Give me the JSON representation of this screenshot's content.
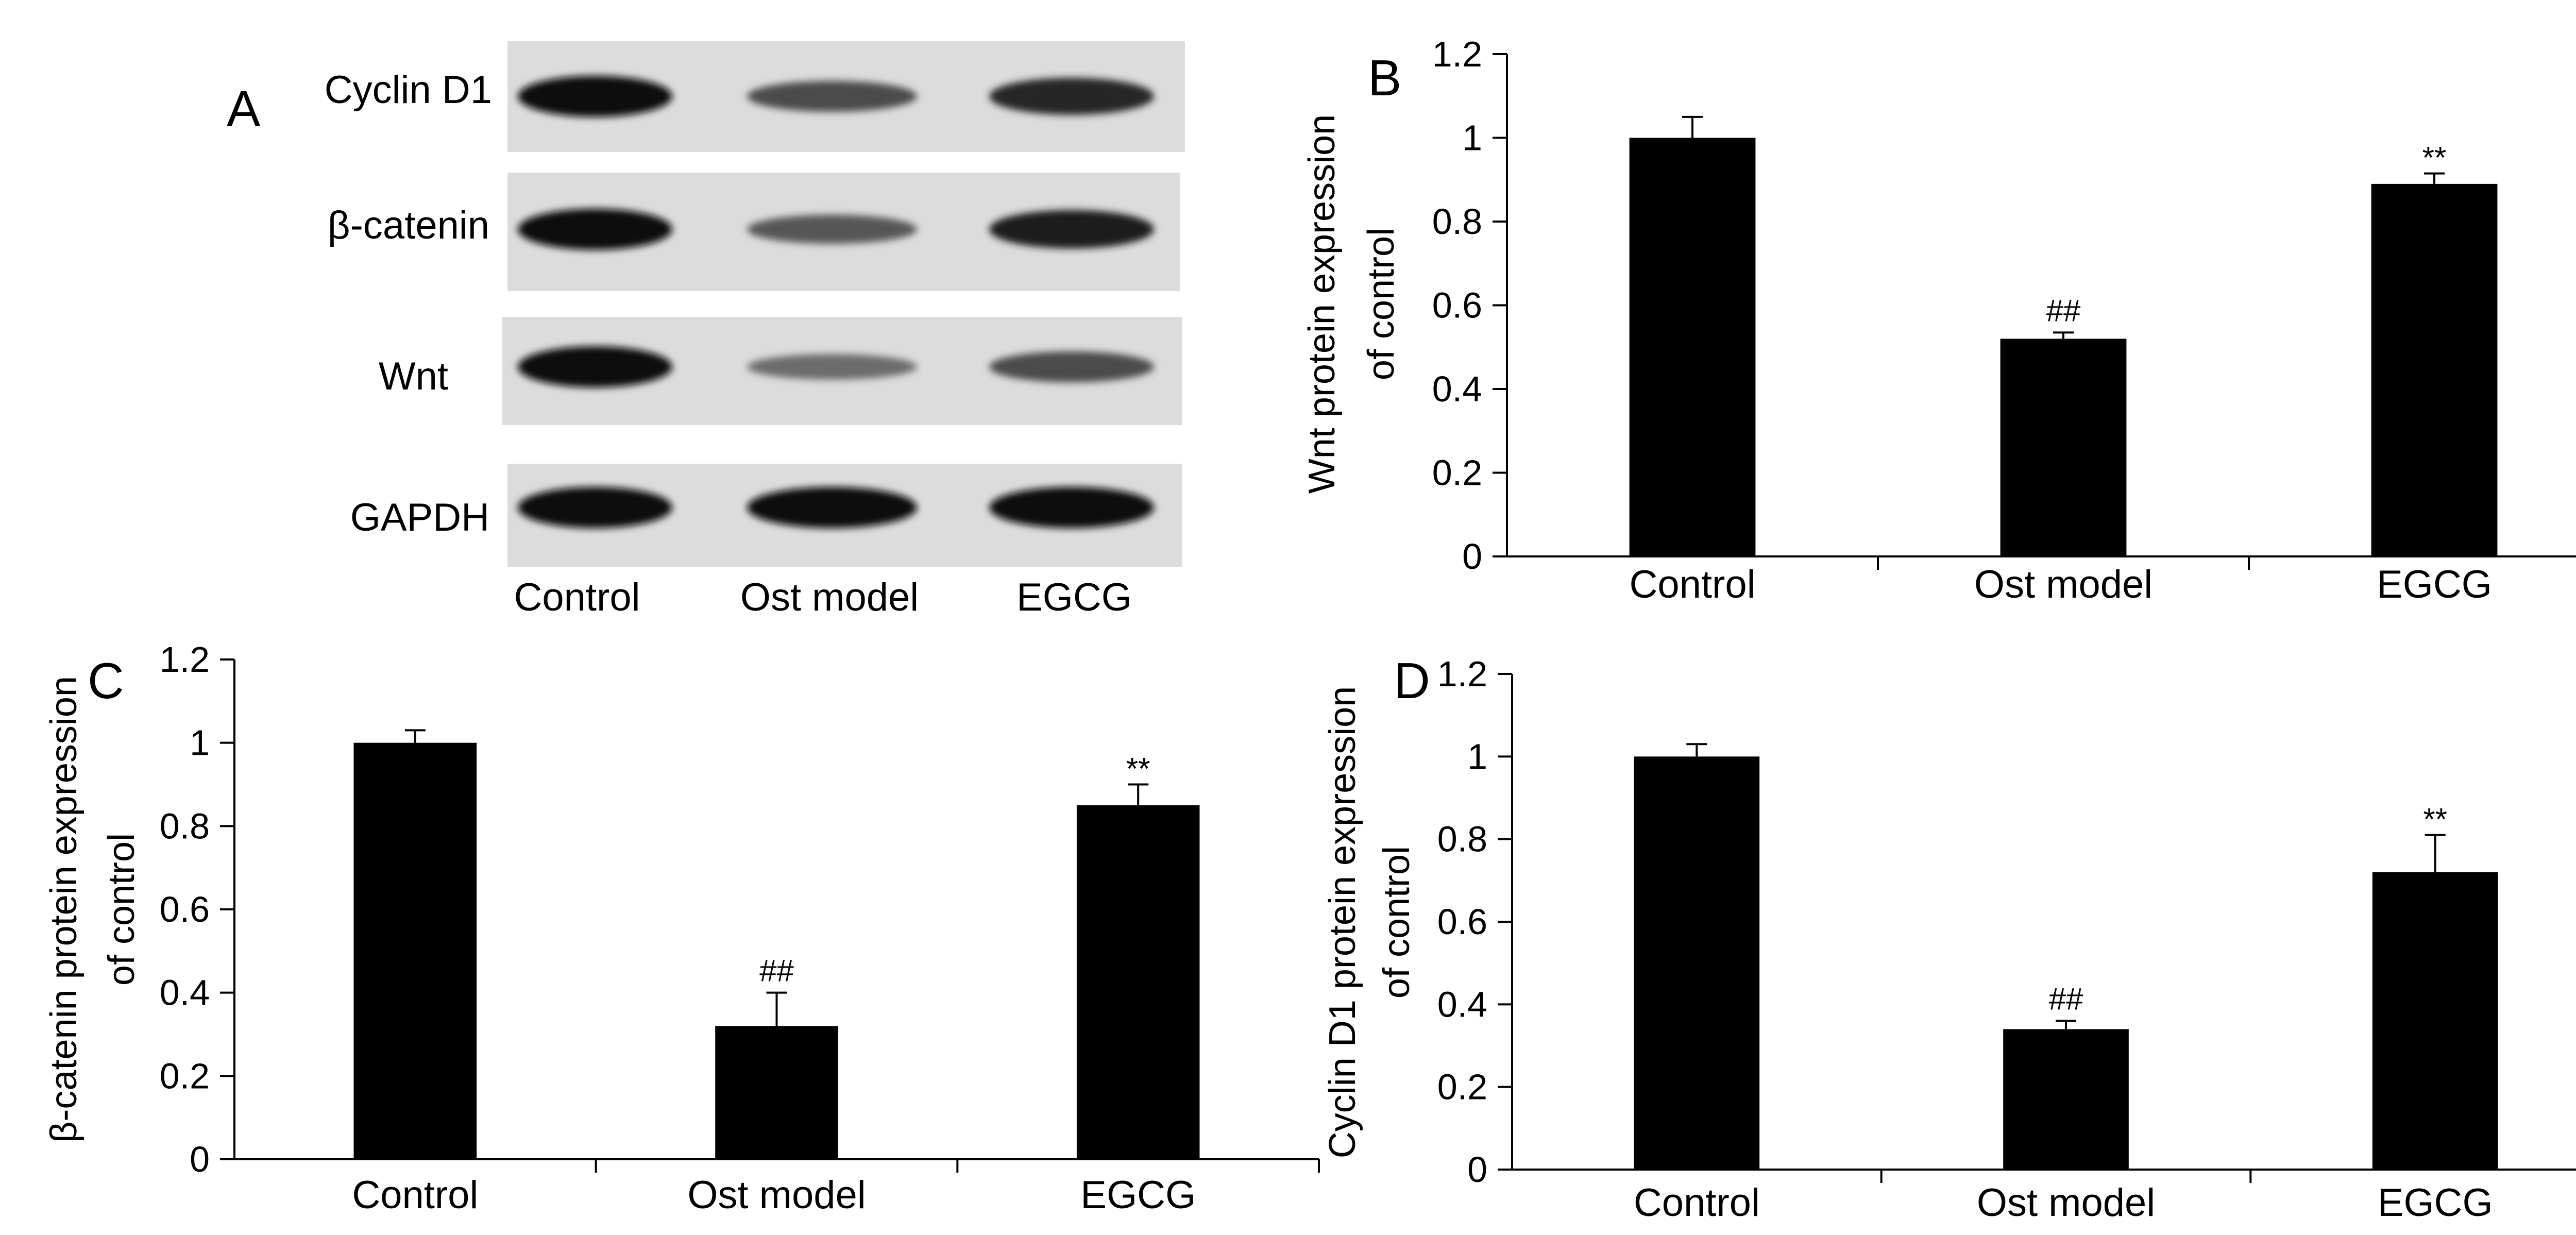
{
  "figure": {
    "panel_letters": [
      "A",
      "B",
      "C",
      "D"
    ]
  },
  "western_blot": {
    "rows": [
      "Cyclin D1",
      "β-catenin",
      "Wnt",
      "GAPDH"
    ],
    "lanes": [
      "Control",
      "Ost model",
      "EGCG"
    ],
    "band_intensity": [
      [
        1.0,
        0.62,
        0.85
      ],
      [
        1.0,
        0.55,
        0.9
      ],
      [
        1.0,
        0.42,
        0.62
      ],
      [
        1.0,
        1.0,
        1.0
      ]
    ]
  },
  "chart_data": [
    {
      "panel": "B",
      "type": "bar",
      "categories": [
        "Control",
        "Ost model",
        "EGCG"
      ],
      "values": [
        1.0,
        0.52,
        0.89
      ],
      "errors": [
        0.05,
        0.015,
        0.025
      ],
      "annotations": [
        "",
        "##",
        "**"
      ],
      "ylabel_lines": [
        "Wnt protein expression",
        "of control"
      ],
      "ylim": [
        0,
        1.2
      ],
      "yticks": [
        "0",
        "0.2",
        "0.4",
        "0.6",
        "0.8",
        "1",
        "1.2"
      ],
      "color": "#000000",
      "grid": false
    },
    {
      "panel": "C",
      "type": "bar",
      "categories": [
        "Control",
        "Ost model",
        "EGCG"
      ],
      "values": [
        1.0,
        0.32,
        0.85
      ],
      "errors": [
        0.03,
        0.08,
        0.05
      ],
      "annotations": [
        "",
        "##",
        "**"
      ],
      "ylabel_lines": [
        "β-catenin protein expression",
        "of control"
      ],
      "ylim": [
        0,
        1.2
      ],
      "yticks": [
        "0",
        "0.2",
        "0.4",
        "0.6",
        "0.8",
        "1",
        "1.2"
      ],
      "color": "#000000",
      "grid": false
    },
    {
      "panel": "D",
      "type": "bar",
      "categories": [
        "Control",
        "Ost model",
        "EGCG"
      ],
      "values": [
        1.0,
        0.34,
        0.72
      ],
      "errors": [
        0.03,
        0.02,
        0.09
      ],
      "annotations": [
        "",
        "##",
        "**"
      ],
      "ylabel_lines": [
        "Cyclin D1 protein expression",
        "of control"
      ],
      "ylim": [
        0,
        1.2
      ],
      "yticks": [
        "0",
        "0.2",
        "0.4",
        "0.6",
        "0.8",
        "1",
        "1.2"
      ],
      "color": "#000000",
      "grid": false
    }
  ]
}
